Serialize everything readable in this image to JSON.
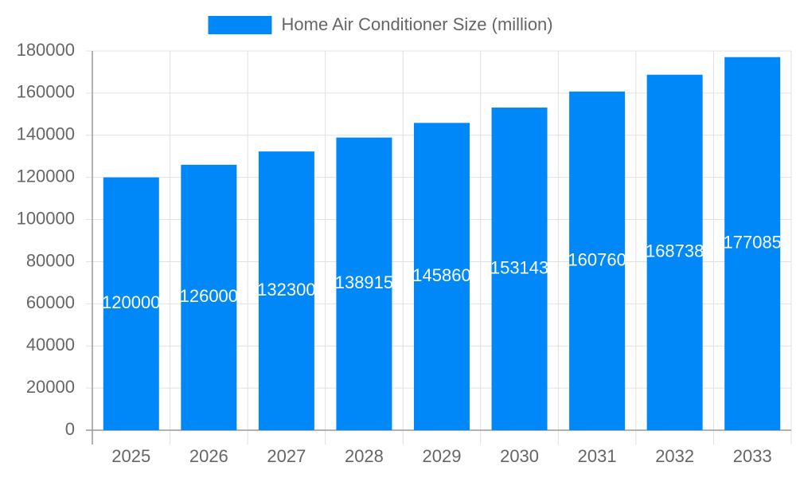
{
  "chart_data": {
    "type": "bar",
    "categories": [
      "2025",
      "2026",
      "2027",
      "2028",
      "2029",
      "2030",
      "2031",
      "2032",
      "2033"
    ],
    "series": [
      {
        "name": "Home Air Conditioner Size (million)",
        "color": "#0088f8",
        "values": [
          120000,
          126000,
          132300,
          138915,
          145860,
          153143,
          160760,
          168738,
          177085
        ]
      }
    ],
    "ylim": [
      0,
      180000
    ],
    "yticks": [
      0,
      20000,
      40000,
      60000,
      80000,
      100000,
      120000,
      140000,
      160000,
      180000
    ],
    "grid": true,
    "legend": "top",
    "data_labels": true
  }
}
